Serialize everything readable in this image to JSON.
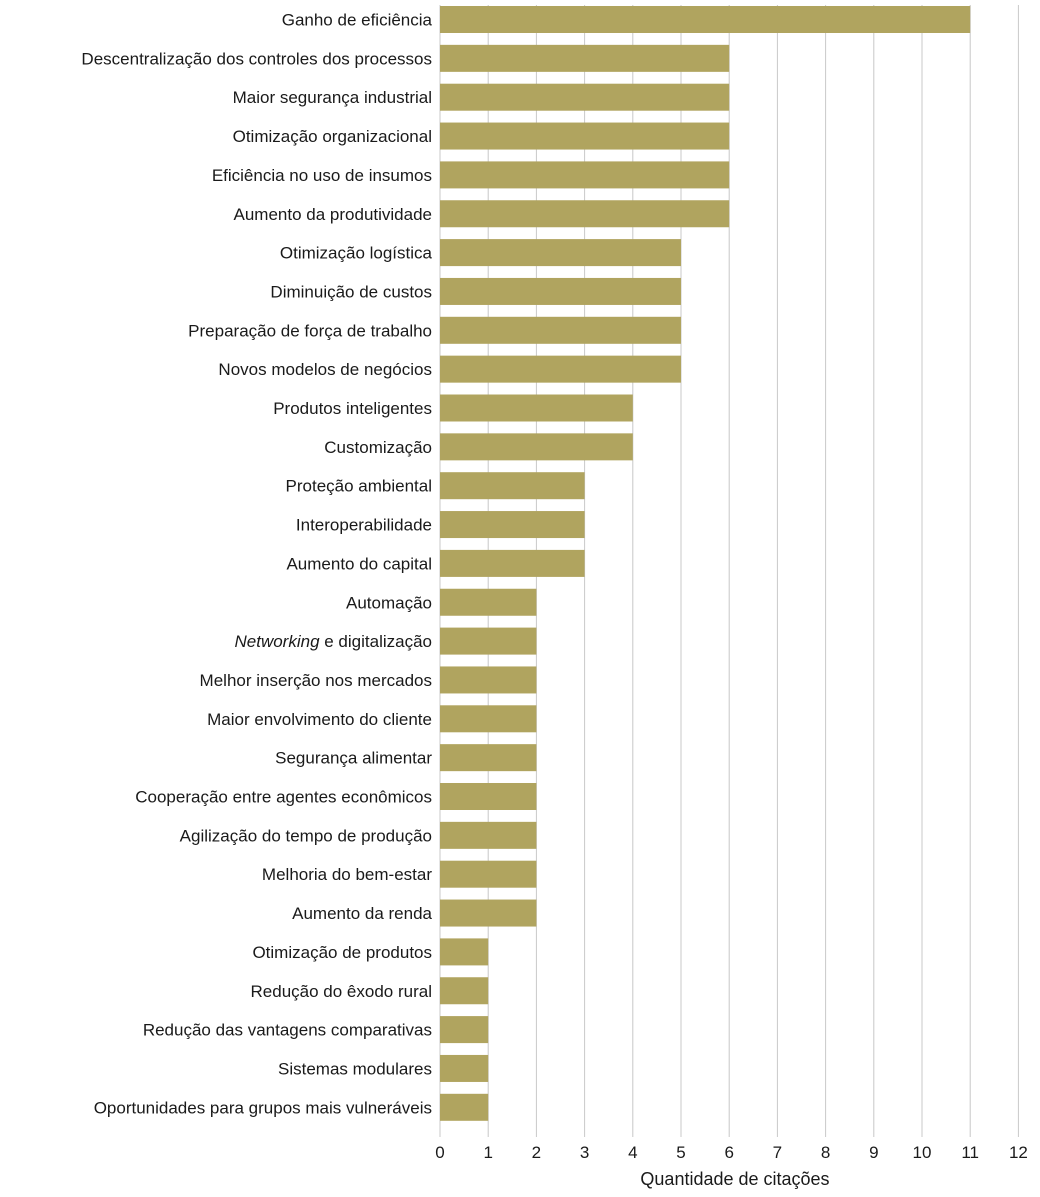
{
  "chart_data": {
    "type": "bar",
    "orientation": "horizontal",
    "categories": [
      "Ganho de eficiência",
      "Descentralização dos controles dos processos",
      "Maior segurança industrial",
      "Otimização organizacional",
      "Eficiência no uso de insumos",
      "Aumento da produtividade",
      "Otimização logística",
      "Diminuição de custos",
      "Preparação de força de trabalho",
      "Novos modelos de negócios",
      "Produtos inteligentes",
      "Customização",
      "Proteção ambiental",
      "Interoperabilidade",
      "Aumento do capital",
      "Automação",
      "Networking e digitalização",
      "Melhor inserção nos mercados",
      "Maior envolvimento do cliente",
      "Segurança alimentar",
      "Cooperação entre agentes econômicos",
      "Agilização do tempo de produção",
      "Melhoria do bem-estar",
      "Aumento da renda",
      "Otimização de produtos",
      "Redução do êxodo rural",
      "Redução das vantagens comparativas",
      "Sistemas modulares",
      "Oportunidades para grupos mais vulneráveis"
    ],
    "values": [
      11,
      6,
      6,
      6,
      6,
      6,
      5,
      5,
      5,
      5,
      4,
      4,
      3,
      3,
      3,
      2,
      2,
      2,
      2,
      2,
      2,
      2,
      2,
      2,
      1,
      1,
      1,
      1,
      1
    ],
    "italic_prefix": {
      "index": 16,
      "text": "Networking",
      "rest": " e digitalização"
    },
    "title": "",
    "xlabel": "Quantidade de citações",
    "ylabel": "",
    "xlim": [
      0,
      12
    ],
    "xticks": [
      "0",
      "1",
      "2",
      "3",
      "4",
      "5",
      "6",
      "7",
      "8",
      "9",
      "10",
      "11",
      "12"
    ],
    "grid": "vertical",
    "legend": "none",
    "bar_color": "#b0a45f",
    "grid_color": "#c8c8c8",
    "text_color": "#1a1a1a"
  }
}
